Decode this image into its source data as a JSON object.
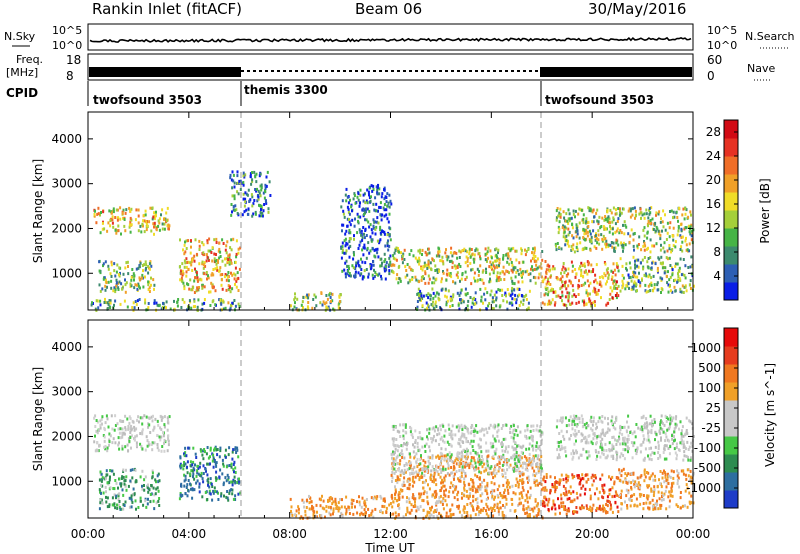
{
  "header": {
    "station": "Rankin Inlet (fitACF)",
    "beam": "Beam 06",
    "date": "30/May/2016"
  },
  "top_panels": {
    "nsky_label": "N.Sky",
    "nsearch_label": "N.Search",
    "noise_ticks_left": [
      "10^5",
      "10^0"
    ],
    "noise_ticks_right": [
      "10^5",
      "10^0"
    ],
    "freq_label": "Freq.",
    "freq_unit": "[MHz]",
    "freq_ticks": [
      "18",
      "8"
    ],
    "nave_label": "Nave",
    "nave_ticks": [
      "60",
      "0"
    ],
    "cpid_label": "CPID",
    "cpid_segments": [
      {
        "name": "twofsound 3503",
        "start_h": 0,
        "end_h": 6
      },
      {
        "name": "themis 3300",
        "start_h": 6,
        "end_h": 18
      },
      {
        "name": "twofsound 3503",
        "start_h": 18,
        "end_h": 24
      }
    ]
  },
  "chart_data": [
    {
      "type": "heatmap",
      "title": "",
      "xlabel": "Time UT",
      "ylabel": "Slant Range [km]",
      "x_ticks": [
        "00:00",
        "04:00",
        "08:00",
        "12:00",
        "16:00",
        "20:00",
        "00:00"
      ],
      "x_range_h": [
        0,
        24
      ],
      "y_ticks": [
        "1000",
        "2000",
        "3000",
        "4000"
      ],
      "ylim": [
        180,
        4600
      ],
      "colorbar": {
        "label": "Power [dB]",
        "ticks": [
          "4",
          "8",
          "12",
          "16",
          "20",
          "24",
          "28"
        ],
        "range": [
          0,
          30
        ],
        "colors": [
          "#0a1ee6",
          "#2d5fb4",
          "#3c8a6e",
          "#46b446",
          "#a5cf3a",
          "#f0dc28",
          "#f0a028",
          "#f06e28",
          "#e63223",
          "#d20a14"
        ]
      },
      "echo_regions": [
        {
          "t0": 0.2,
          "t1": 3.2,
          "r0": 1900,
          "r1": 2500,
          "level": 0.55
        },
        {
          "t0": 0.4,
          "t1": 2.6,
          "r0": 600,
          "r1": 1300,
          "level": 0.4
        },
        {
          "t0": 3.6,
          "t1": 6.0,
          "r0": 600,
          "r1": 1800,
          "level": 0.6
        },
        {
          "t0": 0.0,
          "t1": 6.0,
          "r0": 200,
          "r1": 450,
          "level": 0.35
        },
        {
          "t0": 5.6,
          "t1": 7.2,
          "r0": 2300,
          "r1": 3300,
          "level": 0.2
        },
        {
          "t0": 8.0,
          "t1": 10.0,
          "r0": 200,
          "r1": 600,
          "level": 0.4
        },
        {
          "t0": 10.0,
          "t1": 12.0,
          "r0": 900,
          "r1": 3000,
          "level": 0.15
        },
        {
          "t0": 12.0,
          "t1": 18.0,
          "r0": 800,
          "r1": 1600,
          "level": 0.5
        },
        {
          "t0": 13.0,
          "t1": 17.5,
          "r0": 200,
          "r1": 700,
          "level": 0.3
        },
        {
          "t0": 18.0,
          "t1": 21.0,
          "r0": 300,
          "r1": 1300,
          "level": 0.65
        },
        {
          "t0": 18.5,
          "t1": 24.0,
          "r0": 1500,
          "r1": 2500,
          "level": 0.45
        },
        {
          "t0": 21.0,
          "t1": 24.0,
          "r0": 600,
          "r1": 1400,
          "level": 0.35
        }
      ]
    },
    {
      "type": "heatmap",
      "title": "",
      "xlabel": "Time UT",
      "ylabel": "Slant Range [km]",
      "x_ticks": [
        "00:00",
        "04:00",
        "08:00",
        "12:00",
        "16:00",
        "20:00",
        "00:00"
      ],
      "x_range_h": [
        0,
        24
      ],
      "y_ticks": [
        "1000",
        "2000",
        "3000",
        "4000"
      ],
      "ylim": [
        180,
        4600
      ],
      "colorbar": {
        "label": "Velocity [m s^-1]",
        "ticks": [
          "1000",
          "500",
          "100",
          "25",
          "-25",
          "-100",
          "-500",
          "-1000"
        ],
        "colors": [
          "#1e3cc8",
          "#2d6ea0",
          "#2d8c50",
          "#46c846",
          "#c8c8c8",
          "#c8c8c8",
          "#f0a028",
          "#f07820",
          "#e63c1e",
          "#e60a0a"
        ]
      },
      "echo_regions": [
        {
          "t0": 0.2,
          "t1": 3.2,
          "r0": 1700,
          "r1": 2500,
          "level": "ground"
        },
        {
          "t0": 0.4,
          "t1": 2.8,
          "r0": 400,
          "r1": 1300,
          "level": "positive"
        },
        {
          "t0": 3.6,
          "t1": 6.0,
          "r0": 600,
          "r1": 1800,
          "level": "strong_positive"
        },
        {
          "t0": 8.0,
          "t1": 12.0,
          "r0": 200,
          "r1": 700,
          "level": "negative"
        },
        {
          "t0": 12.0,
          "t1": 18.0,
          "r0": 200,
          "r1": 1600,
          "level": "negative"
        },
        {
          "t0": 12.0,
          "t1": 18.0,
          "r0": 1200,
          "r1": 2300,
          "level": "ground"
        },
        {
          "t0": 18.0,
          "t1": 21.0,
          "r0": 300,
          "r1": 1200,
          "level": "strong_negative"
        },
        {
          "t0": 18.5,
          "t1": 24.0,
          "r0": 1500,
          "r1": 2500,
          "level": "ground"
        },
        {
          "t0": 21.0,
          "t1": 24.0,
          "r0": 400,
          "r1": 1300,
          "level": "negative"
        }
      ]
    }
  ]
}
